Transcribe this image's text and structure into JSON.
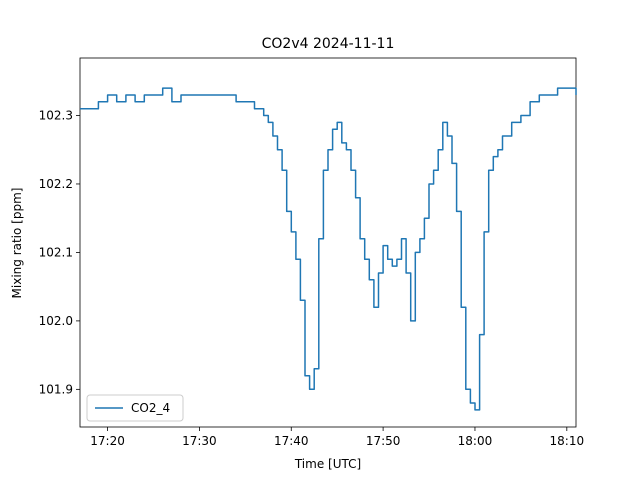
{
  "chart_data": {
    "type": "line",
    "title": "CO2v4 2024-11-11",
    "xlabel": "Time [UTC]",
    "ylabel": "Mixing ratio [ppm]",
    "x_ticks": [
      "17:20",
      "17:30",
      "17:40",
      "17:50",
      "18:00",
      "18:10"
    ],
    "y_ticks": [
      "101.9",
      "102.0",
      "102.1",
      "102.2",
      "102.3"
    ],
    "xlim": [
      "17:17",
      "18:11"
    ],
    "ylim": [
      101.845,
      102.384
    ],
    "grid": false,
    "legend_position": "lower left",
    "series": [
      {
        "name": "CO2_4",
        "color": "#1f77b4",
        "x": [
          "17:17",
          "17:18",
          "17:19",
          "17:20",
          "17:21",
          "17:22",
          "17:23",
          "17:24",
          "17:25",
          "17:26",
          "17:27",
          "17:28",
          "17:29",
          "17:30",
          "17:31",
          "17:32",
          "17:33",
          "17:34",
          "17:35",
          "17:36",
          "17:37",
          "17:37:30",
          "17:38",
          "17:38:30",
          "17:39",
          "17:39:30",
          "17:40",
          "17:40:30",
          "17:41",
          "17:41:30",
          "17:42",
          "17:42:30",
          "17:43",
          "17:43:30",
          "17:44",
          "17:44:30",
          "17:45",
          "17:45:30",
          "17:46",
          "17:46:30",
          "17:47",
          "17:47:30",
          "17:48",
          "17:48:30",
          "17:49",
          "17:49:30",
          "17:50",
          "17:50:30",
          "17:51",
          "17:51:30",
          "17:52",
          "17:52:30",
          "17:53",
          "17:53:30",
          "17:54",
          "17:54:30",
          "17:55",
          "17:55:30",
          "17:56",
          "17:56:30",
          "17:57",
          "17:57:30",
          "17:58",
          "17:58:30",
          "17:59",
          "17:59:30",
          "18:00",
          "18:00:30",
          "18:01",
          "18:01:30",
          "18:02",
          "18:02:30",
          "18:03",
          "18:04",
          "18:05",
          "18:06",
          "18:07",
          "18:08",
          "18:09",
          "18:10",
          "18:11"
        ],
        "values": [
          102.31,
          102.31,
          102.32,
          102.33,
          102.32,
          102.33,
          102.32,
          102.33,
          102.33,
          102.34,
          102.32,
          102.33,
          102.33,
          102.33,
          102.33,
          102.33,
          102.33,
          102.32,
          102.32,
          102.31,
          102.3,
          102.29,
          102.27,
          102.25,
          102.22,
          102.16,
          102.13,
          102.09,
          102.03,
          101.92,
          101.9,
          101.93,
          102.12,
          102.22,
          102.25,
          102.28,
          102.29,
          102.26,
          102.25,
          102.22,
          102.18,
          102.12,
          102.09,
          102.06,
          102.02,
          102.07,
          102.11,
          102.09,
          102.08,
          102.09,
          102.12,
          102.07,
          102.0,
          102.1,
          102.12,
          102.15,
          102.2,
          102.22,
          102.25,
          102.29,
          102.27,
          102.23,
          102.16,
          102.02,
          101.9,
          101.88,
          101.87,
          101.98,
          102.13,
          102.22,
          102.24,
          102.25,
          102.27,
          102.29,
          102.3,
          102.32,
          102.33,
          102.33,
          102.34,
          102.34,
          102.33
        ]
      }
    ]
  }
}
